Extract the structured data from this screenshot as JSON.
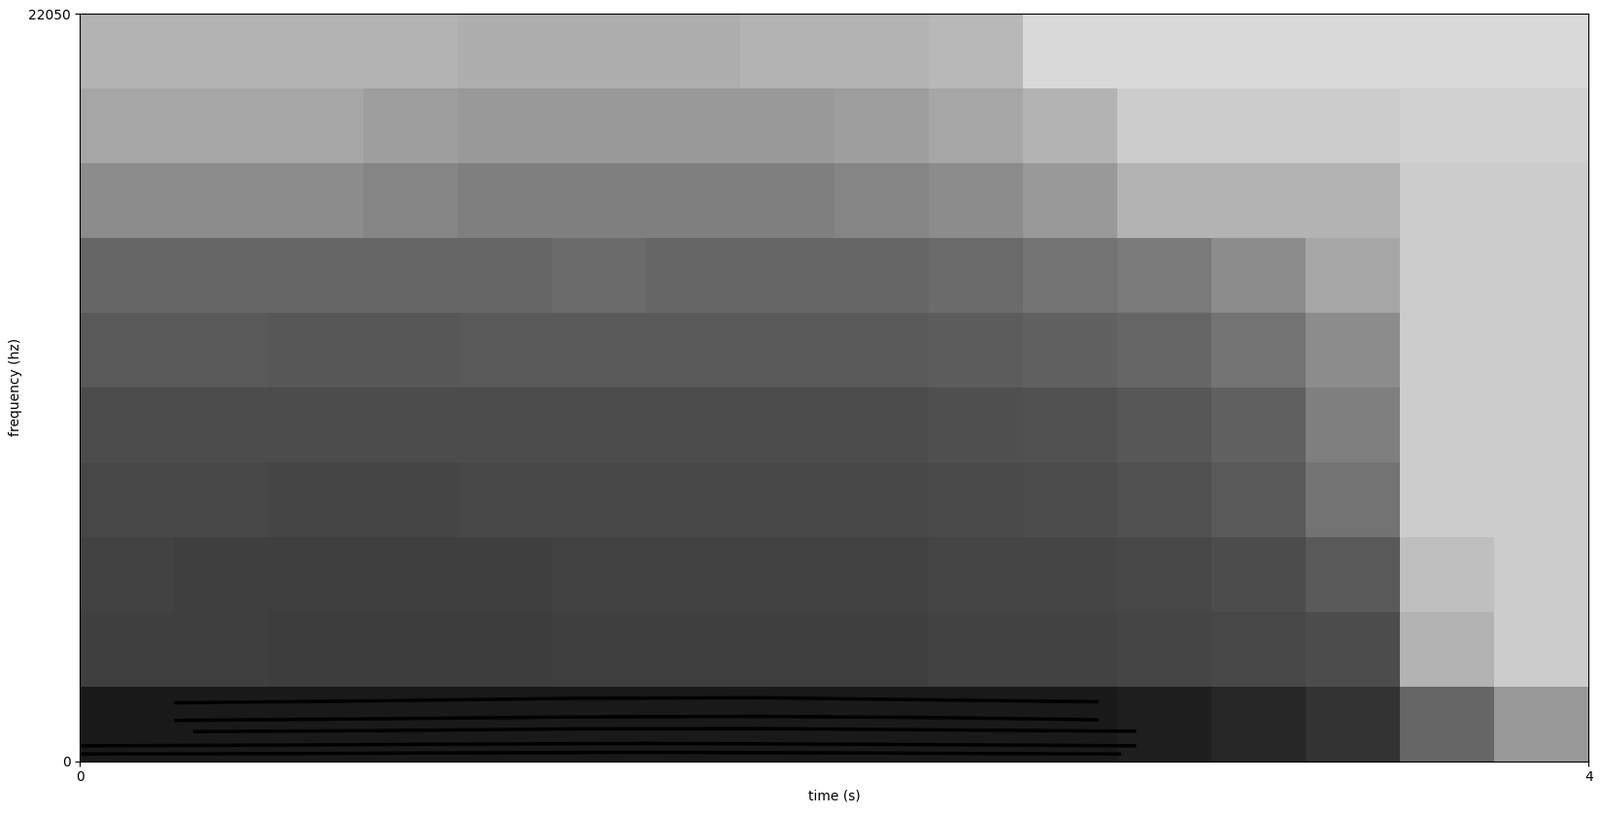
{
  "chart_data": {
    "type": "spectrogram",
    "x_label": "time (s)",
    "y_label": "frequency (hz)",
    "xlim": [
      0,
      4
    ],
    "xticks": [
      0,
      4
    ],
    "ylim": [
      0,
      22050
    ],
    "yticks": [
      0,
      22050
    ],
    "time_edges": [
      0,
      0.25,
      0.5,
      0.75,
      1.0,
      1.25,
      1.5,
      1.75,
      2.0,
      2.25,
      2.5,
      2.75,
      3.0,
      3.25,
      3.5,
      3.75,
      4.0
    ],
    "frequency_edges": [
      0,
      2205,
      4410,
      6615,
      8820,
      11025,
      13230,
      15435,
      17640,
      19845,
      22050
    ],
    "cells_range": [
      0,
      1
    ],
    "cells": [
      [
        0.9,
        0.9,
        0.9,
        0.9,
        0.9,
        0.9,
        0.9,
        0.9,
        0.9,
        0.9,
        0.9,
        0.88,
        0.85,
        0.8,
        0.6,
        0.4
      ],
      [
        0.75,
        0.75,
        0.76,
        0.76,
        0.76,
        0.75,
        0.75,
        0.75,
        0.75,
        0.74,
        0.74,
        0.73,
        0.72,
        0.7,
        0.3,
        0.2
      ],
      [
        0.74,
        0.75,
        0.75,
        0.75,
        0.75,
        0.74,
        0.74,
        0.74,
        0.74,
        0.73,
        0.73,
        0.72,
        0.7,
        0.65,
        0.25,
        0.2
      ],
      [
        0.72,
        0.72,
        0.73,
        0.73,
        0.72,
        0.72,
        0.72,
        0.72,
        0.72,
        0.71,
        0.7,
        0.68,
        0.65,
        0.55,
        0.2,
        0.2
      ],
      [
        0.7,
        0.7,
        0.7,
        0.7,
        0.7,
        0.7,
        0.7,
        0.7,
        0.7,
        0.69,
        0.68,
        0.66,
        0.62,
        0.5,
        0.2,
        0.2
      ],
      [
        0.65,
        0.65,
        0.66,
        0.66,
        0.65,
        0.65,
        0.65,
        0.65,
        0.65,
        0.64,
        0.62,
        0.6,
        0.55,
        0.45,
        0.2,
        0.2
      ],
      [
        0.6,
        0.6,
        0.6,
        0.6,
        0.6,
        0.58,
        0.6,
        0.6,
        0.6,
        0.58,
        0.55,
        0.52,
        0.45,
        0.35,
        0.2,
        0.2
      ],
      [
        0.45,
        0.45,
        0.45,
        0.48,
        0.5,
        0.5,
        0.5,
        0.5,
        0.48,
        0.45,
        0.4,
        0.3,
        0.3,
        0.3,
        0.2,
        0.2
      ],
      [
        0.35,
        0.35,
        0.35,
        0.38,
        0.4,
        0.4,
        0.4,
        0.4,
        0.38,
        0.35,
        0.3,
        0.2,
        0.2,
        0.2,
        0.18,
        0.18
      ],
      [
        0.3,
        0.3,
        0.3,
        0.3,
        0.32,
        0.32,
        0.32,
        0.3,
        0.3,
        0.28,
        0.15,
        0.15,
        0.15,
        0.15,
        0.15,
        0.15
      ]
    ],
    "harmonics": [
      {
        "time": [
          0,
          0.5,
          1.0,
          1.5,
          2.0,
          2.5,
          2.76
        ],
        "frequency": [
          210,
          220,
          240,
          260,
          240,
          220,
          210
        ]
      },
      {
        "time": [
          0,
          0.5,
          1.0,
          1.5,
          2.0,
          2.5,
          2.8
        ],
        "frequency": [
          450,
          470,
          500,
          520,
          500,
          470,
          450
        ]
      },
      {
        "time": [
          0.3,
          0.8,
          1.3,
          1.8,
          2.3,
          2.8
        ],
        "frequency": [
          870,
          900,
          950,
          960,
          920,
          880
        ]
      },
      {
        "time": [
          0.25,
          0.8,
          1.3,
          1.8,
          2.3,
          2.7
        ],
        "frequency": [
          1200,
          1250,
          1300,
          1320,
          1280,
          1220
        ]
      },
      {
        "time": [
          0.25,
          0.8,
          1.3,
          1.8,
          2.3,
          2.7
        ],
        "frequency": [
          1720,
          1780,
          1850,
          1870,
          1800,
          1750
        ]
      }
    ]
  }
}
